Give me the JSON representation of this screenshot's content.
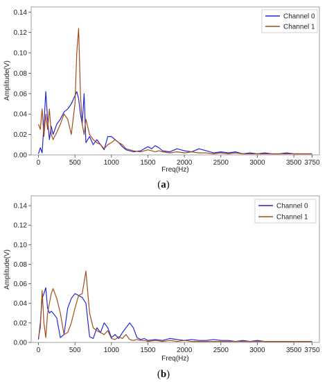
{
  "chart_data": [
    {
      "type": "line",
      "panel": "a",
      "caption": "(a)",
      "xlabel": "Freq(Hz)",
      "ylabel": "Amplitude(V)",
      "xlim": [
        -100,
        3850
      ],
      "ylim": [
        0,
        0.145
      ],
      "xticks": [
        0,
        500,
        1000,
        1500,
        2000,
        2500,
        3000,
        3500,
        3750
      ],
      "xtick_labels": [
        "0",
        "500",
        "1000",
        "1500",
        "2000",
        "2500",
        "3000",
        "3500",
        "3750"
      ],
      "yticks": [
        0.0,
        0.02,
        0.04,
        0.06,
        0.08,
        0.1,
        0.12,
        0.14
      ],
      "ytick_labels": [
        "0.00",
        "0.02",
        "0.04",
        "0.06",
        "0.08",
        "0.10",
        "0.12",
        "0.14"
      ],
      "grid": false,
      "legend": "top-right",
      "series": [
        {
          "name": "Channel 0",
          "color": "#2424d8",
          "x": [
            0,
            25,
            50,
            75,
            100,
            125,
            150,
            175,
            200,
            250,
            300,
            350,
            400,
            450,
            500,
            525,
            550,
            575,
            600,
            625,
            650,
            700,
            750,
            800,
            850,
            900,
            950,
            1000,
            1050,
            1100,
            1150,
            1200,
            1300,
            1400,
            1500,
            1550,
            1600,
            1650,
            1700,
            1800,
            1900,
            2000,
            2100,
            2200,
            2300,
            2400,
            2500,
            2600,
            2700,
            2800,
            2900,
            3000,
            3100,
            3200,
            3300,
            3400,
            3500,
            3600,
            3700,
            3750
          ],
          "y": [
            0.001,
            0.007,
            0.002,
            0.03,
            0.062,
            0.035,
            0.015,
            0.028,
            0.02,
            0.03,
            0.035,
            0.042,
            0.045,
            0.05,
            0.058,
            0.062,
            0.055,
            0.04,
            0.03,
            0.06,
            0.012,
            0.018,
            0.01,
            0.015,
            0.01,
            0.005,
            0.018,
            0.018,
            0.015,
            0.012,
            0.008,
            0.005,
            0.003,
            0.004,
            0.008,
            0.006,
            0.009,
            0.007,
            0.004,
            0.003,
            0.006,
            0.004,
            0.003,
            0.006,
            0.004,
            0.002,
            0.003,
            0.002,
            0.003,
            0.001,
            0.002,
            0.001,
            0.002,
            0.001,
            0.001,
            0.002,
            0.001,
            0.001,
            0.001,
            0.001
          ]
        },
        {
          "name": "Channel 1",
          "color": "#a34a1a",
          "x": [
            0,
            25,
            50,
            75,
            100,
            125,
            150,
            175,
            200,
            250,
            300,
            350,
            400,
            450,
            500,
            525,
            550,
            575,
            600,
            625,
            650,
            700,
            750,
            800,
            850,
            900,
            950,
            1000,
            1050,
            1100,
            1150,
            1200,
            1300,
            1400,
            1500,
            1550,
            1600,
            1650,
            1700,
            1800,
            1900,
            2000,
            2100,
            2200,
            2300,
            2400,
            2500,
            2600,
            2700,
            2800,
            2900,
            3000,
            3100,
            3200,
            3300,
            3400,
            3500,
            3600,
            3700,
            3750
          ],
          "y": [
            0.03,
            0.025,
            0.045,
            0.018,
            0.04,
            0.025,
            0.045,
            0.02,
            0.015,
            0.022,
            0.03,
            0.04,
            0.035,
            0.02,
            0.05,
            0.1,
            0.124,
            0.06,
            0.03,
            0.02,
            0.035,
            0.02,
            0.015,
            0.012,
            0.01,
            0.006,
            0.01,
            0.012,
            0.015,
            0.012,
            0.01,
            0.006,
            0.004,
            0.003,
            0.005,
            0.004,
            0.003,
            0.004,
            0.003,
            0.002,
            0.003,
            0.002,
            0.003,
            0.002,
            0.002,
            0.001,
            0.002,
            0.001,
            0.002,
            0.001,
            0.001,
            0.001,
            0.001,
            0.001,
            0.001,
            0.001,
            0.001,
            0.001,
            0.001,
            0.001
          ]
        }
      ]
    },
    {
      "type": "line",
      "panel": "b",
      "caption": "(b)",
      "xlabel": "Freq(Hz)",
      "ylabel": "Amplitude(V)",
      "xlim": [
        -100,
        3850
      ],
      "ylim": [
        0,
        0.15
      ],
      "xticks": [
        0,
        500,
        1000,
        1500,
        2000,
        2500,
        3000,
        3500,
        3750
      ],
      "xtick_labels": [
        "0",
        "500",
        "1000",
        "1500",
        "2000",
        "2500",
        "3000",
        "3500",
        "3750"
      ],
      "yticks": [
        0.0,
        0.02,
        0.04,
        0.06,
        0.08,
        0.1,
        0.12,
        0.14
      ],
      "ytick_labels": [
        "0.00",
        "0.02",
        "0.04",
        "0.06",
        "0.08",
        "0.10",
        "0.12",
        "0.14"
      ],
      "grid": false,
      "legend": "top-right",
      "series": [
        {
          "name": "Channel 0",
          "color": "#2424d8",
          "x": [
            0,
            25,
            50,
            75,
            100,
            125,
            150,
            175,
            200,
            250,
            300,
            350,
            400,
            450,
            500,
            550,
            600,
            650,
            700,
            750,
            800,
            850,
            900,
            950,
            1000,
            1050,
            1100,
            1150,
            1200,
            1250,
            1300,
            1350,
            1400,
            1450,
            1500,
            1600,
            1700,
            1800,
            1900,
            2000,
            2100,
            2200,
            2300,
            2400,
            2500,
            2600,
            2700,
            2800,
            2900,
            3000,
            3100,
            3200,
            3300,
            3400,
            3500,
            3600,
            3700,
            3750
          ],
          "y": [
            0.003,
            0.02,
            0.045,
            0.05,
            0.056,
            0.035,
            0.03,
            0.032,
            0.03,
            0.025,
            0.005,
            0.008,
            0.035,
            0.045,
            0.05,
            0.048,
            0.046,
            0.04,
            0.006,
            0.004,
            0.015,
            0.01,
            0.02,
            0.015,
            0.005,
            0.008,
            0.004,
            0.01,
            0.015,
            0.02,
            0.015,
            0.005,
            0.003,
            0.004,
            0.002,
            0.003,
            0.002,
            0.004,
            0.003,
            0.002,
            0.003,
            0.002,
            0.002,
            0.003,
            0.002,
            0.002,
            0.001,
            0.002,
            0.001,
            0.002,
            0.001,
            0.001,
            0.001,
            0.001,
            0.001,
            0.001,
            0.001,
            0.001
          ]
        },
        {
          "name": "Channel 1",
          "color": "#a34a1a",
          "x": [
            0,
            25,
            50,
            75,
            100,
            125,
            150,
            175,
            200,
            250,
            300,
            350,
            400,
            450,
            500,
            550,
            600,
            650,
            700,
            750,
            800,
            850,
            900,
            950,
            1000,
            1050,
            1100,
            1150,
            1200,
            1250,
            1300,
            1350,
            1400,
            1450,
            1500,
            1600,
            1700,
            1800,
            1900,
            2000,
            2100,
            2200,
            2300,
            2400,
            2500,
            2600,
            2700,
            2800,
            2900,
            3000,
            3100,
            3200,
            3300,
            3400,
            3500,
            3600,
            3700,
            3750
          ],
          "y": [
            0.005,
            0.015,
            0.053,
            0.02,
            0.005,
            0.03,
            0.04,
            0.05,
            0.055,
            0.045,
            0.03,
            0.008,
            0.01,
            0.02,
            0.035,
            0.048,
            0.05,
            0.073,
            0.03,
            0.015,
            0.012,
            0.01,
            0.008,
            0.012,
            0.004,
            0.003,
            0.006,
            0.004,
            0.008,
            0.003,
            0.002,
            0.003,
            0.002,
            0.002,
            0.001,
            0.002,
            0.001,
            0.002,
            0.001,
            0.002,
            0.001,
            0.001,
            0.001,
            0.001,
            0.001,
            0.001,
            0.001,
            0.001,
            0.001,
            0.001,
            0.001,
            0.001,
            0.001,
            0.001,
            0.001,
            0.001,
            0.001,
            0.001
          ]
        }
      ]
    }
  ]
}
